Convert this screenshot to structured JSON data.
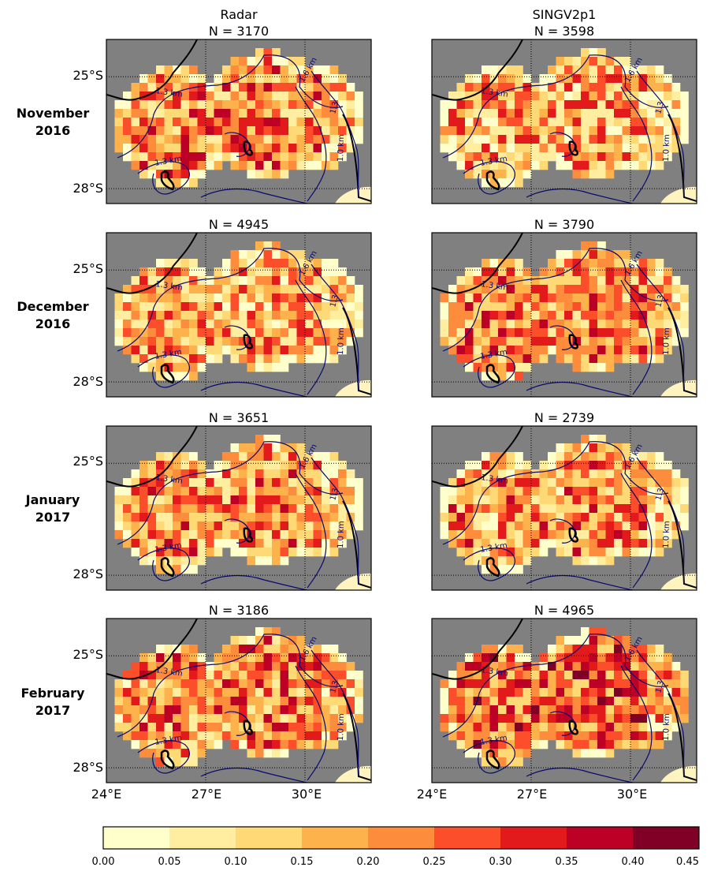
{
  "columns": [
    {
      "name": "Radar",
      "n_values": [
        "N = 3170",
        "N = 4945",
        "N = 3651",
        "N = 3186"
      ]
    },
    {
      "name": "SINGV2p1",
      "n_values": [
        "N = 3598",
        "N = 3790",
        "N = 2739",
        "N = 4965"
      ]
    }
  ],
  "rows": [
    {
      "line1": "November",
      "line2": "2016"
    },
    {
      "line1": "December",
      "line2": "2016"
    },
    {
      "line1": "January",
      "line2": "2017"
    },
    {
      "line1": "February",
      "line2": "2017"
    }
  ],
  "lat_ticks": [
    "25°S",
    "28°S"
  ],
  "lon_ticks": [
    "24°E",
    "27°E",
    "30°E"
  ],
  "contour_labels": {
    "a": "1.3 km",
    "b": "1.3 km",
    "c": "1.6 km",
    "d": "1.3",
    "e": "1.0 km"
  },
  "colorbar_ticks": [
    "0.00",
    "0.05",
    "0.10",
    "0.15",
    "0.20",
    "0.25",
    "0.30",
    "0.35",
    "0.40",
    "0.45"
  ],
  "chart_data": {
    "type": "heatmap",
    "layout": "4 rows (months) x 2 columns (Radar, SINGV2p1) of maps",
    "lon_range": [
      24,
      32
    ],
    "lat_range": [
      -28.4,
      -24
    ],
    "lat_ticks": [
      -25,
      -28
    ],
    "lon_ticks": [
      24,
      27,
      30
    ],
    "grid": "dotted lines at tick positions",
    "colorbar": {
      "boundaries": [
        0.0,
        0.05,
        0.1,
        0.15,
        0.2,
        0.25,
        0.3,
        0.35,
        0.4,
        0.45
      ],
      "colors": [
        "#ffffcc",
        "#ffeda0",
        "#fed976",
        "#feb24c",
        "#fd8d3c",
        "#fc4e2a",
        "#e31a1c",
        "#bd0026",
        "#800026"
      ],
      "orientation": "horizontal"
    },
    "background_color": "#808080",
    "panels": [
      {
        "column": "Radar",
        "month": "November 2016",
        "N": 3170
      },
      {
        "column": "SINGV2p1",
        "month": "November 2016",
        "N": 3598
      },
      {
        "column": "Radar",
        "month": "December 2016",
        "N": 4945
      },
      {
        "column": "SINGV2p1",
        "month": "December 2016",
        "N": 3790
      },
      {
        "column": "Radar",
        "month": "January 2017",
        "N": 3651
      },
      {
        "column": "SINGV2p1",
        "month": "January 2017",
        "N": 2739
      },
      {
        "column": "Radar",
        "month": "February 2017",
        "N": 3186
      },
      {
        "column": "SINGV2p1",
        "month": "February 2017",
        "N": 4965
      }
    ]
  }
}
